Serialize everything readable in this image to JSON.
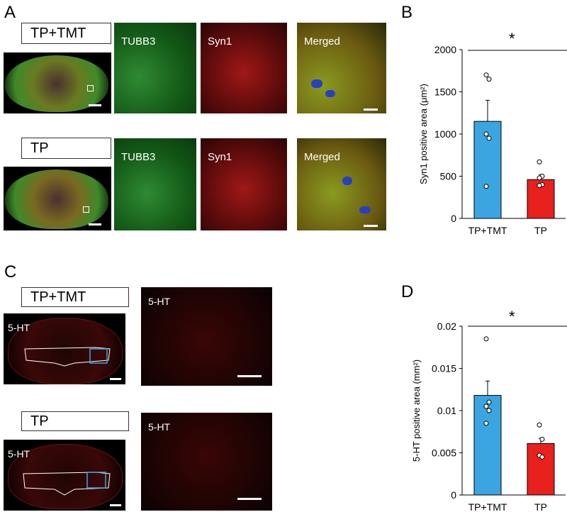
{
  "panels": {
    "A": {
      "letter": "A",
      "rows": [
        {
          "group": "TP+TMT",
          "channels": [
            "TUBB3",
            "Syn1",
            "Merged"
          ]
        },
        {
          "group": "TP",
          "channels": [
            "TUBB3",
            "Syn1",
            "Merged"
          ]
        }
      ]
    },
    "B": {
      "letter": "B",
      "significance": "*"
    },
    "C": {
      "letter": "C",
      "rows": [
        {
          "group": "TP+TMT",
          "stain": "5-HT",
          "stain_zoom": "5-HT"
        },
        {
          "group": "TP",
          "stain": "5-HT",
          "stain_zoom": "5-HT"
        }
      ]
    },
    "D": {
      "letter": "D",
      "significance": "*"
    }
  },
  "chart_data": [
    {
      "type": "bar",
      "panel": "B",
      "categories": [
        "TP+TMT",
        "TP"
      ],
      "values": [
        1150,
        460
      ],
      "errors": [
        250,
        60
      ],
      "points": [
        [
          1700,
          1650,
          1000,
          950,
          380
        ],
        [
          670,
          500,
          480,
          400,
          390
        ]
      ],
      "colors": [
        "#3aa5e0",
        "#e8201e"
      ],
      "ylabel": "Syn1 positive area (μm²)",
      "ylim": [
        0,
        2000
      ],
      "yticks": [
        "0",
        "500",
        "1000",
        "1500",
        "2000"
      ],
      "grid": false
    },
    {
      "type": "bar",
      "panel": "D",
      "categories": [
        "TP+TMT",
        "TP"
      ],
      "values": [
        0.0118,
        0.0061
      ],
      "errors": [
        0.0017,
        0.0006
      ],
      "points": [
        [
          0.0185,
          0.011,
          0.0105,
          0.01,
          0.0085
        ],
        [
          0.0083,
          0.0066,
          0.0047,
          0.0045
        ]
      ],
      "colors": [
        "#3aa5e0",
        "#e8201e"
      ],
      "ylabel": "5-HT positive area (mm²)",
      "ylim": [
        0,
        0.02
      ],
      "yticks": [
        "0",
        "0.005",
        "0.01",
        "0.015",
        "0.02"
      ],
      "grid": false
    }
  ]
}
